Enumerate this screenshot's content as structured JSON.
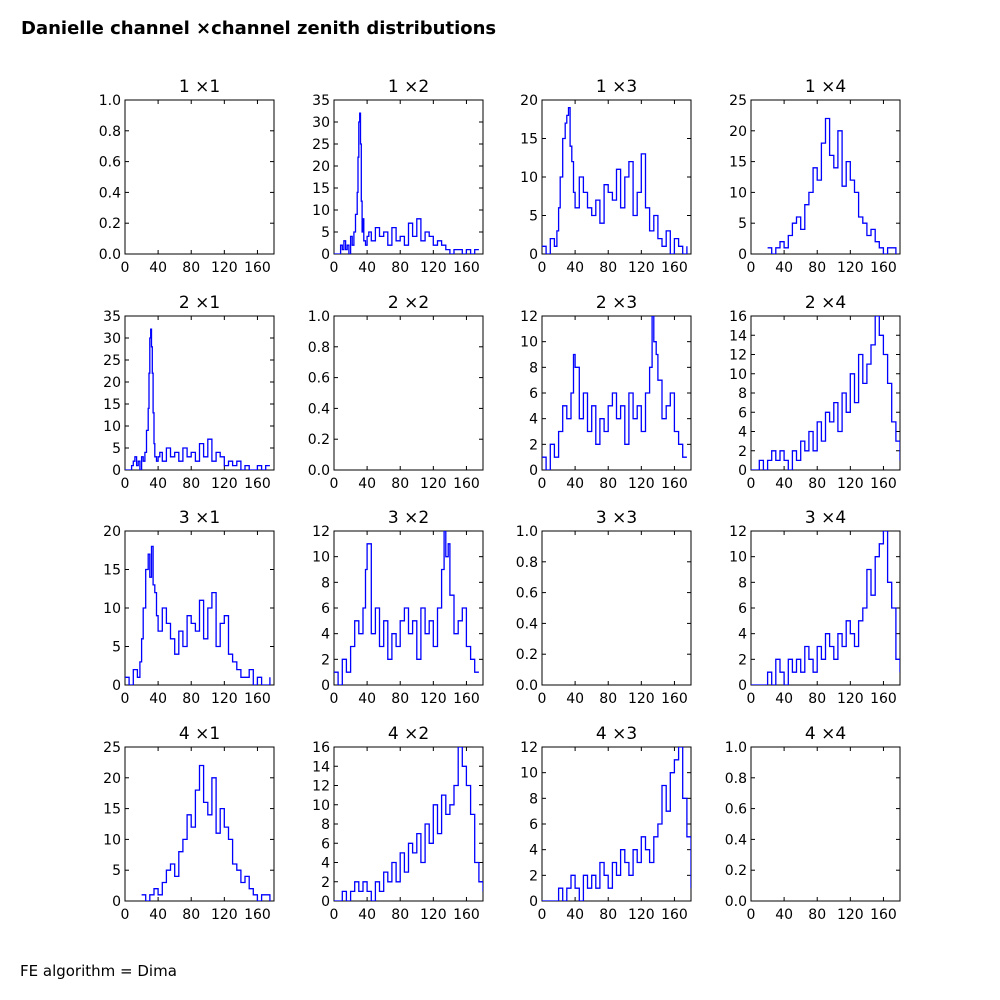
{
  "figure": {
    "title": "Danielle channel ×channel zenith distributions",
    "footer": "FE algorithm = Dima"
  },
  "style": {
    "line_color": "#0000ff",
    "axis_color": "#000000"
  },
  "chart_data": [
    {
      "type": "line",
      "title": "1 ×1",
      "xlim": [
        0,
        180
      ],
      "ylim": [
        0,
        1.0
      ],
      "xticks": [
        0,
        40,
        80,
        120,
        160
      ],
      "yticks": [
        "0.0",
        "0.2",
        "0.4",
        "0.6",
        "0.8",
        "1.0"
      ],
      "x": [],
      "y": []
    },
    {
      "type": "line",
      "title": "1 ×2",
      "xlim": [
        0,
        180
      ],
      "ylim": [
        0,
        35
      ],
      "xticks": [
        0,
        40,
        80,
        120,
        160
      ],
      "yticks": [
        "0",
        "5",
        "10",
        "15",
        "20",
        "25",
        "30",
        "35"
      ],
      "x": [
        0,
        5,
        8,
        10,
        12,
        14,
        16,
        18,
        20,
        22,
        24,
        26,
        28,
        29,
        30,
        31,
        32,
        33,
        34,
        35,
        36,
        38,
        40,
        42,
        45,
        50,
        55,
        60,
        65,
        70,
        75,
        80,
        85,
        90,
        95,
        100,
        105,
        110,
        115,
        120,
        125,
        130,
        135,
        140,
        145,
        150,
        155,
        160,
        165,
        170,
        175
      ],
      "y": [
        0,
        0,
        2,
        1,
        3,
        1,
        2,
        0,
        4,
        2,
        5,
        9,
        14,
        22,
        30,
        32,
        25,
        12,
        5,
        8,
        3,
        2,
        4,
        5,
        3,
        6,
        4,
        5,
        2,
        6,
        3,
        4,
        2,
        7,
        4,
        8,
        3,
        5,
        4,
        2,
        3,
        2,
        1,
        0,
        1,
        1,
        0,
        1,
        0,
        1,
        1
      ]
    },
    {
      "type": "line",
      "title": "1 ×3",
      "xlim": [
        0,
        180
      ],
      "ylim": [
        0,
        20
      ],
      "xticks": [
        0,
        40,
        80,
        120,
        160
      ],
      "yticks": [
        "0",
        "5",
        "10",
        "15",
        "20"
      ],
      "x": [
        0,
        5,
        10,
        15,
        18,
        20,
        22,
        25,
        28,
        30,
        32,
        34,
        36,
        38,
        40,
        45,
        50,
        55,
        60,
        65,
        70,
        75,
        80,
        85,
        90,
        95,
        100,
        105,
        110,
        115,
        120,
        125,
        130,
        135,
        140,
        145,
        150,
        155,
        160,
        165,
        170,
        175
      ],
      "y": [
        1,
        0,
        2,
        1,
        3,
        6,
        10,
        15,
        17,
        18,
        19,
        14,
        12,
        8,
        6,
        10,
        8,
        6,
        5,
        7,
        4,
        9,
        8,
        7,
        11,
        6,
        10,
        12,
        5,
        8,
        13,
        6,
        3,
        5,
        2,
        1,
        3,
        0,
        2,
        1,
        0,
        1
      ]
    },
    {
      "type": "line",
      "title": "1 ×4",
      "xlim": [
        0,
        180
      ],
      "ylim": [
        0,
        25
      ],
      "xticks": [
        0,
        40,
        80,
        120,
        160
      ],
      "yticks": [
        "0",
        "5",
        "10",
        "15",
        "20",
        "25"
      ],
      "x": [
        20,
        25,
        30,
        35,
        40,
        45,
        50,
        55,
        60,
        65,
        70,
        75,
        80,
        85,
        90,
        95,
        100,
        105,
        110,
        115,
        120,
        125,
        130,
        135,
        140,
        145,
        150,
        155,
        160,
        165,
        170,
        175
      ],
      "y": [
        1,
        0,
        1,
        2,
        1,
        3,
        5,
        6,
        4,
        8,
        10,
        14,
        12,
        18,
        22,
        16,
        14,
        20,
        11,
        15,
        12,
        10,
        6,
        5,
        3,
        4,
        2,
        1,
        0,
        1,
        1,
        0
      ]
    },
    {
      "type": "line",
      "title": "2 ×1",
      "xlim": [
        0,
        180
      ],
      "ylim": [
        0,
        35
      ],
      "xticks": [
        0,
        40,
        80,
        120,
        160
      ],
      "yticks": [
        "0",
        "5",
        "10",
        "15",
        "20",
        "25",
        "30",
        "35"
      ],
      "x": [
        0,
        5,
        8,
        10,
        12,
        14,
        16,
        18,
        20,
        22,
        24,
        26,
        28,
        29,
        30,
        31,
        32,
        33,
        34,
        35,
        36,
        38,
        40,
        42,
        45,
        50,
        55,
        60,
        65,
        70,
        75,
        80,
        85,
        90,
        95,
        100,
        105,
        110,
        115,
        120,
        125,
        130,
        135,
        140,
        145,
        150,
        155,
        160,
        165,
        170,
        175
      ],
      "y": [
        0,
        0,
        1,
        2,
        3,
        1,
        2,
        0,
        3,
        2,
        4,
        9,
        14,
        22,
        30,
        32,
        28,
        22,
        13,
        6,
        3,
        2,
        3,
        4,
        2,
        5,
        3,
        4,
        2,
        5,
        3,
        4,
        2,
        6,
        3,
        7,
        2,
        4,
        3,
        1,
        2,
        1,
        2,
        0,
        1,
        0,
        0,
        1,
        0,
        1,
        1
      ]
    },
    {
      "type": "line",
      "title": "2 ×2",
      "xlim": [
        0,
        180
      ],
      "ylim": [
        0,
        1.0
      ],
      "xticks": [
        0,
        40,
        80,
        120,
        160
      ],
      "yticks": [
        "0.0",
        "0.2",
        "0.4",
        "0.6",
        "0.8",
        "1.0"
      ],
      "x": [],
      "y": []
    },
    {
      "type": "line",
      "title": "2 ×3",
      "xlim": [
        0,
        180
      ],
      "ylim": [
        0,
        12
      ],
      "xticks": [
        0,
        40,
        80,
        120,
        160
      ],
      "yticks": [
        "0",
        "2",
        "4",
        "6",
        "8",
        "10",
        "12"
      ],
      "x": [
        0,
        5,
        10,
        15,
        20,
        25,
        30,
        35,
        38,
        40,
        45,
        50,
        55,
        60,
        65,
        70,
        75,
        80,
        85,
        90,
        95,
        100,
        105,
        110,
        115,
        120,
        125,
        130,
        133,
        135,
        138,
        140,
        145,
        150,
        155,
        160,
        165,
        170,
        175
      ],
      "y": [
        1,
        0,
        2,
        1,
        3,
        5,
        4,
        6,
        9,
        8,
        4,
        6,
        3,
        5,
        2,
        4,
        3,
        5,
        6,
        4,
        5,
        2,
        6,
        4,
        5,
        3,
        6,
        8,
        12,
        10,
        9,
        7,
        4,
        5,
        6,
        3,
        2,
        1,
        1
      ]
    },
    {
      "type": "line",
      "title": "2 ×4",
      "xlim": [
        0,
        180
      ],
      "ylim": [
        0,
        16
      ],
      "xticks": [
        0,
        40,
        80,
        120,
        160
      ],
      "yticks": [
        "0",
        "2",
        "4",
        "6",
        "8",
        "10",
        "12",
        "14",
        "16"
      ],
      "x": [
        0,
        5,
        10,
        15,
        20,
        25,
        30,
        35,
        40,
        45,
        50,
        55,
        60,
        65,
        70,
        75,
        80,
        85,
        90,
        95,
        100,
        105,
        110,
        115,
        120,
        125,
        130,
        135,
        140,
        145,
        150,
        155,
        160,
        165,
        170,
        175,
        180
      ],
      "y": [
        0,
        0,
        1,
        0,
        1,
        2,
        1,
        2,
        1,
        0,
        2,
        1,
        3,
        2,
        4,
        2,
        5,
        3,
        6,
        5,
        7,
        4,
        8,
        6,
        10,
        7,
        12,
        9,
        11,
        13,
        16,
        14,
        12,
        9,
        5,
        3,
        1
      ]
    },
    {
      "type": "line",
      "title": "3 ×1",
      "xlim": [
        0,
        180
      ],
      "ylim": [
        0,
        20
      ],
      "xticks": [
        0,
        40,
        80,
        120,
        160
      ],
      "yticks": [
        "0",
        "5",
        "10",
        "15",
        "20"
      ],
      "x": [
        0,
        5,
        10,
        15,
        18,
        20,
        22,
        25,
        28,
        30,
        32,
        34,
        36,
        38,
        40,
        45,
        50,
        55,
        60,
        65,
        70,
        75,
        80,
        85,
        90,
        95,
        100,
        105,
        110,
        115,
        120,
        125,
        130,
        135,
        140,
        145,
        150,
        155,
        160,
        165,
        170,
        175
      ],
      "y": [
        1,
        0,
        2,
        1,
        3,
        6,
        10,
        15,
        17,
        14,
        18,
        13,
        12,
        9,
        7,
        10,
        8,
        6,
        4,
        7,
        5,
        9,
        8,
        7,
        11,
        6,
        10,
        12,
        5,
        8,
        9,
        4,
        3,
        2,
        1,
        1,
        2,
        0,
        1,
        0,
        0,
        1
      ]
    },
    {
      "type": "line",
      "title": "3 ×2",
      "xlim": [
        0,
        180
      ],
      "ylim": [
        0,
        12
      ],
      "xticks": [
        0,
        40,
        80,
        120,
        160
      ],
      "yticks": [
        "0",
        "2",
        "4",
        "6",
        "8",
        "10",
        "12"
      ],
      "x": [
        0,
        5,
        10,
        15,
        20,
        25,
        30,
        35,
        38,
        40,
        45,
        50,
        55,
        60,
        65,
        70,
        75,
        80,
        85,
        90,
        95,
        100,
        105,
        110,
        115,
        120,
        125,
        130,
        133,
        135,
        138,
        140,
        145,
        150,
        155,
        160,
        165,
        170,
        175
      ],
      "y": [
        1,
        0,
        2,
        1,
        3,
        5,
        4,
        6,
        9,
        11,
        4,
        6,
        3,
        5,
        2,
        4,
        3,
        5,
        6,
        4,
        5,
        2,
        6,
        4,
        5,
        3,
        6,
        9,
        12,
        10,
        11,
        7,
        4,
        5,
        6,
        3,
        2,
        1,
        1
      ]
    },
    {
      "type": "line",
      "title": "3 ×3",
      "xlim": [
        0,
        180
      ],
      "ylim": [
        0,
        1.0
      ],
      "xticks": [
        0,
        40,
        80,
        120,
        160
      ],
      "yticks": [
        "0.0",
        "0.2",
        "0.4",
        "0.6",
        "0.8",
        "1.0"
      ],
      "x": [],
      "y": []
    },
    {
      "type": "line",
      "title": "3 ×4",
      "xlim": [
        0,
        180
      ],
      "ylim": [
        0,
        12
      ],
      "xticks": [
        0,
        40,
        80,
        120,
        160
      ],
      "yticks": [
        "0",
        "2",
        "4",
        "6",
        "8",
        "10",
        "12"
      ],
      "x": [
        0,
        10,
        20,
        25,
        30,
        35,
        40,
        45,
        50,
        55,
        60,
        65,
        70,
        75,
        80,
        85,
        90,
        95,
        100,
        105,
        110,
        115,
        120,
        125,
        130,
        135,
        140,
        145,
        150,
        155,
        160,
        165,
        170,
        175,
        180
      ],
      "y": [
        0,
        0,
        1,
        0,
        2,
        1,
        0,
        2,
        1,
        2,
        1,
        3,
        2,
        1,
        3,
        2,
        4,
        3,
        2,
        4,
        3,
        5,
        4,
        3,
        5,
        6,
        9,
        7,
        10,
        11,
        12,
        8,
        6,
        2,
        1
      ]
    },
    {
      "type": "line",
      "title": "4 ×1",
      "xlim": [
        0,
        180
      ],
      "ylim": [
        0,
        25
      ],
      "xticks": [
        0,
        40,
        80,
        120,
        160
      ],
      "yticks": [
        "0",
        "5",
        "10",
        "15",
        "20",
        "25"
      ],
      "x": [
        20,
        25,
        30,
        35,
        40,
        45,
        50,
        55,
        60,
        65,
        70,
        75,
        80,
        85,
        90,
        95,
        100,
        105,
        110,
        115,
        120,
        125,
        130,
        135,
        140,
        145,
        150,
        155,
        160,
        165,
        170,
        175
      ],
      "y": [
        1,
        0,
        1,
        2,
        1,
        3,
        5,
        6,
        4,
        8,
        10,
        14,
        12,
        18,
        22,
        16,
        14,
        20,
        11,
        15,
        12,
        10,
        6,
        5,
        3,
        4,
        2,
        1,
        0,
        1,
        1,
        0
      ]
    },
    {
      "type": "line",
      "title": "4 ×2",
      "xlim": [
        0,
        180
      ],
      "ylim": [
        0,
        16
      ],
      "xticks": [
        0,
        40,
        80,
        120,
        160
      ],
      "yticks": [
        "0",
        "2",
        "4",
        "6",
        "8",
        "10",
        "12",
        "14",
        "16"
      ],
      "x": [
        0,
        5,
        10,
        15,
        20,
        25,
        30,
        35,
        40,
        45,
        50,
        55,
        60,
        65,
        70,
        75,
        80,
        85,
        90,
        95,
        100,
        105,
        110,
        115,
        120,
        125,
        130,
        135,
        140,
        145,
        150,
        155,
        160,
        165,
        170,
        175,
        180
      ],
      "y": [
        0,
        0,
        1,
        0,
        1,
        2,
        1,
        2,
        1,
        0,
        2,
        1,
        3,
        2,
        4,
        2,
        5,
        3,
        6,
        5,
        7,
        4,
        8,
        6,
        10,
        7,
        11,
        9,
        10,
        12,
        16,
        14,
        12,
        9,
        4,
        2,
        1
      ]
    },
    {
      "type": "line",
      "title": "4 ×3",
      "xlim": [
        0,
        180
      ],
      "ylim": [
        0,
        12
      ],
      "xticks": [
        0,
        40,
        80,
        120,
        160
      ],
      "yticks": [
        "0",
        "2",
        "4",
        "6",
        "8",
        "10",
        "12"
      ],
      "x": [
        0,
        10,
        20,
        25,
        30,
        35,
        40,
        45,
        50,
        55,
        60,
        65,
        70,
        75,
        80,
        85,
        90,
        95,
        100,
        105,
        110,
        115,
        120,
        125,
        130,
        135,
        140,
        145,
        150,
        155,
        160,
        165,
        170,
        175,
        180
      ],
      "y": [
        0,
        0,
        1,
        0,
        1,
        2,
        1,
        0,
        2,
        1,
        2,
        1,
        3,
        2,
        1,
        3,
        2,
        4,
        3,
        2,
        4,
        3,
        5,
        4,
        3,
        5,
        6,
        9,
        7,
        10,
        11,
        12,
        8,
        5,
        1
      ]
    },
    {
      "type": "line",
      "title": "4 ×4",
      "xlim": [
        0,
        180
      ],
      "ylim": [
        0,
        1.0
      ],
      "xticks": [
        0,
        40,
        80,
        120,
        160
      ],
      "yticks": [
        "0.0",
        "0.2",
        "0.4",
        "0.6",
        "0.8",
        "1.0"
      ],
      "x": [],
      "y": []
    }
  ]
}
